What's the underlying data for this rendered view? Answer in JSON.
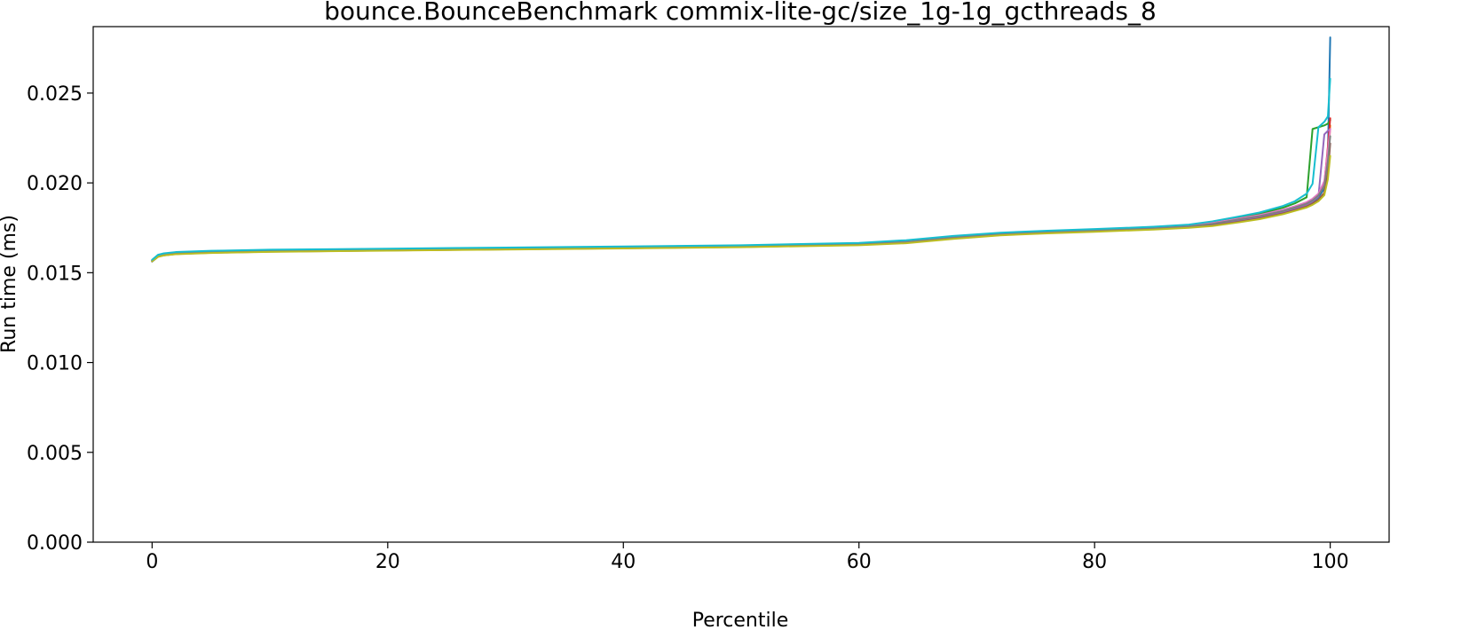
{
  "chart_data": {
    "type": "line",
    "title": "bounce.BounceBenchmark commix-lite-gc/size_1g-1g_gcthreads_8",
    "xlabel": "Percentile",
    "ylabel": "Run time (ms)",
    "xlim": [
      -5,
      105
    ],
    "ylim": [
      0,
      0.0287
    ],
    "xticks": [
      0,
      20,
      40,
      60,
      80,
      100
    ],
    "xtick_labels": [
      "0",
      "20",
      "40",
      "60",
      "80",
      "100"
    ],
    "yticks": [
      0,
      0.005,
      0.01,
      0.015,
      0.02,
      0.025
    ],
    "ytick_labels": [
      "0.000",
      "0.005",
      "0.010",
      "0.015",
      "0.020",
      "0.025"
    ],
    "grid": false,
    "legend": "none",
    "x": [
      0,
      0.5,
      1,
      2,
      5,
      10,
      20,
      30,
      40,
      50,
      60,
      64,
      68,
      72,
      76,
      80,
      85,
      88,
      90,
      92,
      94,
      96,
      97,
      98,
      98.5,
      99,
      99.5,
      99.8,
      100
    ],
    "series": [
      {
        "color": "#1f77b4",
        "values": [
          0.01562,
          0.01589,
          0.01597,
          0.01604,
          0.01612,
          0.01618,
          0.01625,
          0.01631,
          0.01637,
          0.01644,
          0.01656,
          0.01672,
          0.01695,
          0.01714,
          0.01725,
          0.01734,
          0.01746,
          0.01757,
          0.0177,
          0.01791,
          0.01812,
          0.0184,
          0.01858,
          0.01879,
          0.01895,
          0.01918,
          0.01968,
          0.0215,
          0.0281
        ]
      },
      {
        "color": "#ff7f0e",
        "values": [
          0.01565,
          0.01591,
          0.01599,
          0.01606,
          0.01613,
          0.01619,
          0.01626,
          0.01632,
          0.01638,
          0.01645,
          0.01657,
          0.01668,
          0.01692,
          0.01712,
          0.01723,
          0.01732,
          0.01743,
          0.01753,
          0.01763,
          0.01782,
          0.01803,
          0.01831,
          0.01849,
          0.01869,
          0.01885,
          0.01906,
          0.01945,
          0.0208,
          0.0232
        ]
      },
      {
        "color": "#2ca02c",
        "values": [
          0.0157,
          0.01596,
          0.01604,
          0.01611,
          0.01618,
          0.01624,
          0.0163,
          0.01636,
          0.01642,
          0.01649,
          0.01661,
          0.01676,
          0.017,
          0.01719,
          0.0173,
          0.01739,
          0.01752,
          0.01764,
          0.01782,
          0.01805,
          0.01828,
          0.01862,
          0.01886,
          0.0192,
          0.023,
          0.0231,
          0.0232,
          0.0233,
          0.0235
        ]
      },
      {
        "color": "#d62728",
        "values": [
          0.01568,
          0.01594,
          0.01602,
          0.01609,
          0.01616,
          0.01622,
          0.01629,
          0.01635,
          0.01641,
          0.01648,
          0.0166,
          0.01673,
          0.01697,
          0.01716,
          0.01727,
          0.01736,
          0.01749,
          0.0176,
          0.01775,
          0.01797,
          0.01819,
          0.01848,
          0.01867,
          0.0189,
          0.01908,
          0.01935,
          0.01995,
          0.022,
          0.0236
        ]
      },
      {
        "color": "#9467bd",
        "values": [
          0.01566,
          0.01592,
          0.016,
          0.01607,
          0.01614,
          0.0162,
          0.01627,
          0.01633,
          0.01639,
          0.01646,
          0.01658,
          0.0167,
          0.01694,
          0.01713,
          0.01724,
          0.01733,
          0.01745,
          0.01756,
          0.01769,
          0.0179,
          0.01811,
          0.01839,
          0.01858,
          0.0188,
          0.01898,
          0.01925,
          0.0227,
          0.0229,
          0.023
        ]
      },
      {
        "color": "#8c564b",
        "values": [
          0.01563,
          0.01589,
          0.01597,
          0.01604,
          0.01611,
          0.01617,
          0.01624,
          0.0163,
          0.01636,
          0.01643,
          0.01655,
          0.01666,
          0.0169,
          0.0171,
          0.01721,
          0.0173,
          0.01742,
          0.01752,
          0.01762,
          0.01781,
          0.01802,
          0.0183,
          0.01848,
          0.01868,
          0.01884,
          0.01905,
          0.01942,
          0.0205,
          0.0222
        ]
      },
      {
        "color": "#e377c2",
        "values": [
          0.01569,
          0.01595,
          0.01603,
          0.0161,
          0.01617,
          0.01623,
          0.0163,
          0.01636,
          0.01642,
          0.01649,
          0.01661,
          0.01674,
          0.01698,
          0.01717,
          0.01728,
          0.01737,
          0.0175,
          0.01761,
          0.01777,
          0.01799,
          0.01821,
          0.01851,
          0.0187,
          0.01893,
          0.01912,
          0.0194,
          0.0201,
          0.0218,
          0.023
        ]
      },
      {
        "color": "#7f7f7f",
        "values": [
          0.01567,
          0.01593,
          0.01601,
          0.01608,
          0.01615,
          0.01621,
          0.01628,
          0.01634,
          0.0164,
          0.01647,
          0.01659,
          0.01671,
          0.01696,
          0.01715,
          0.01726,
          0.01735,
          0.01747,
          0.01758,
          0.01772,
          0.01794,
          0.01815,
          0.01844,
          0.01863,
          0.01885,
          0.01903,
          0.0193,
          0.01985,
          0.0212,
          0.0226
        ]
      },
      {
        "color": "#bcbd22",
        "values": [
          0.01564,
          0.01588,
          0.01596,
          0.01603,
          0.0161,
          0.01616,
          0.01623,
          0.01629,
          0.01635,
          0.01642,
          0.01653,
          0.01664,
          0.01688,
          0.01708,
          0.01719,
          0.01728,
          0.0174,
          0.0175,
          0.0176,
          0.01778,
          0.01798,
          0.01826,
          0.01844,
          0.01863,
          0.01878,
          0.01898,
          0.01932,
          0.0202,
          0.0215
        ]
      },
      {
        "color": "#17becf",
        "values": [
          0.01572,
          0.016,
          0.01608,
          0.01615,
          0.01622,
          0.01628,
          0.01634,
          0.0164,
          0.01646,
          0.01653,
          0.01666,
          0.01681,
          0.01705,
          0.01723,
          0.01734,
          0.01743,
          0.01756,
          0.01768,
          0.01786,
          0.0181,
          0.01835,
          0.01872,
          0.01898,
          0.0194,
          0.01995,
          0.0231,
          0.0234,
          0.0237,
          0.0258
        ]
      }
    ]
  }
}
